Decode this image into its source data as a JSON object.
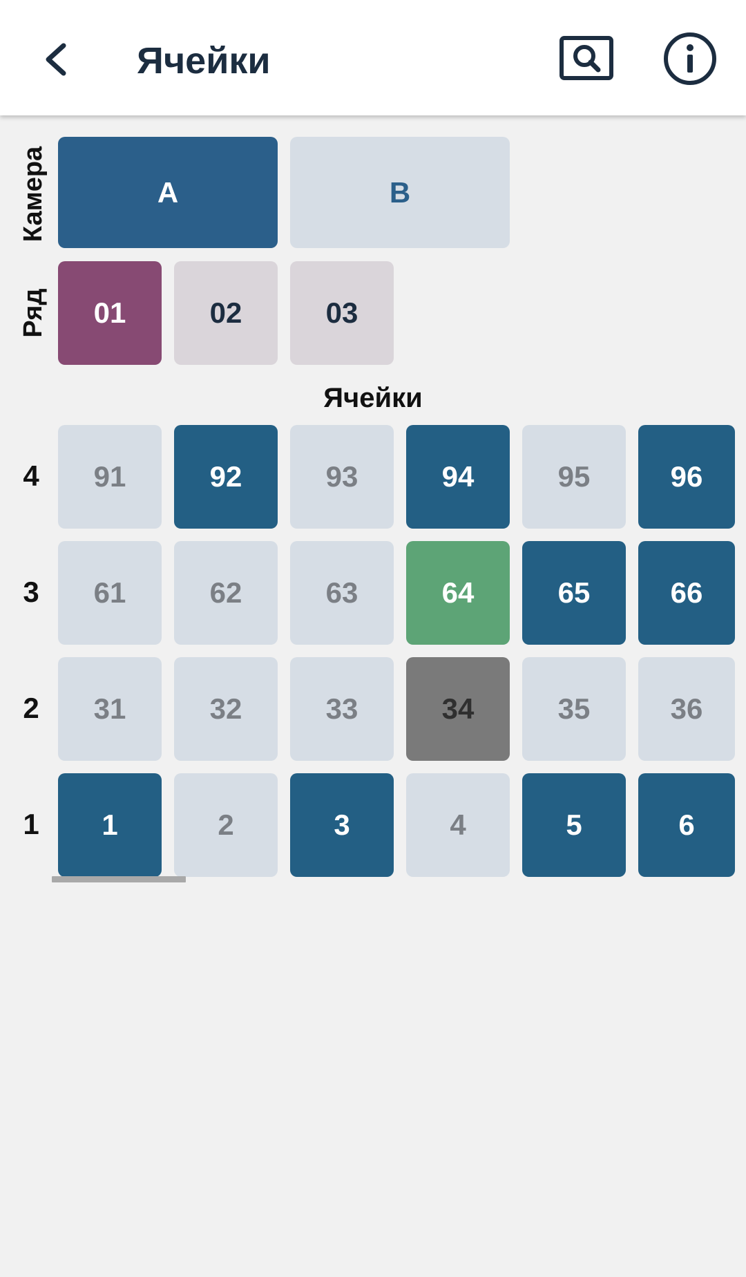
{
  "appbar": {
    "title": "Ячейки",
    "back_icon": "chevron-left-icon",
    "search_icon": "search-icon",
    "info_icon": "info-icon"
  },
  "chamber": {
    "label": "Камера",
    "options": [
      {
        "label": "A",
        "selected": true
      },
      {
        "label": "B",
        "selected": false
      }
    ]
  },
  "row": {
    "label": "Ряд",
    "options": [
      {
        "label": "01",
        "selected": true
      },
      {
        "label": "02",
        "selected": false
      },
      {
        "label": "03",
        "selected": false
      }
    ]
  },
  "cells": {
    "title": "Ячейки",
    "rows": [
      {
        "label": "4",
        "cells": [
          {
            "label": "91",
            "state": "empty"
          },
          {
            "label": "92",
            "state": "occupied"
          },
          {
            "label": "93",
            "state": "empty"
          },
          {
            "label": "94",
            "state": "occupied"
          },
          {
            "label": "95",
            "state": "empty"
          },
          {
            "label": "96",
            "state": "occupied"
          }
        ]
      },
      {
        "label": "3",
        "cells": [
          {
            "label": "61",
            "state": "empty"
          },
          {
            "label": "62",
            "state": "empty"
          },
          {
            "label": "63",
            "state": "empty"
          },
          {
            "label": "64",
            "state": "highlighted"
          },
          {
            "label": "65",
            "state": "occupied"
          },
          {
            "label": "66",
            "state": "occupied"
          }
        ]
      },
      {
        "label": "2",
        "cells": [
          {
            "label": "31",
            "state": "empty"
          },
          {
            "label": "32",
            "state": "empty"
          },
          {
            "label": "33",
            "state": "empty"
          },
          {
            "label": "34",
            "state": "blocked"
          },
          {
            "label": "35",
            "state": "empty"
          },
          {
            "label": "36",
            "state": "empty"
          }
        ]
      },
      {
        "label": "1",
        "cells": [
          {
            "label": "1",
            "state": "occupied"
          },
          {
            "label": "2",
            "state": "empty"
          },
          {
            "label": "3",
            "state": "occupied"
          },
          {
            "label": "4",
            "state": "empty"
          },
          {
            "label": "5",
            "state": "occupied"
          },
          {
            "label": "6",
            "state": "occupied"
          }
        ]
      }
    ]
  },
  "colors": {
    "chamber_selected_bg": "#2b5f8a",
    "chamber_selected_fg": "#ffffff",
    "chamber_unselected_bg": "#d6dde5",
    "chamber_unselected_fg": "#2b5f8a",
    "row_selected_bg": "#874a73",
    "row_selected_fg": "#ffffff",
    "row_unselected_bg": "#dad5da",
    "row_unselected_fg": "#1c2d40",
    "cell_empty_bg": "#d6dde5",
    "cell_empty_fg": "#7b7f85",
    "cell_occupied_bg": "#235f84",
    "cell_occupied_fg": "#ffffff",
    "cell_highlighted_bg": "#5da476",
    "cell_highlighted_fg": "#ffffff",
    "cell_blocked_bg": "#7a7a7a",
    "cell_blocked_fg": "#2f2f2f"
  }
}
